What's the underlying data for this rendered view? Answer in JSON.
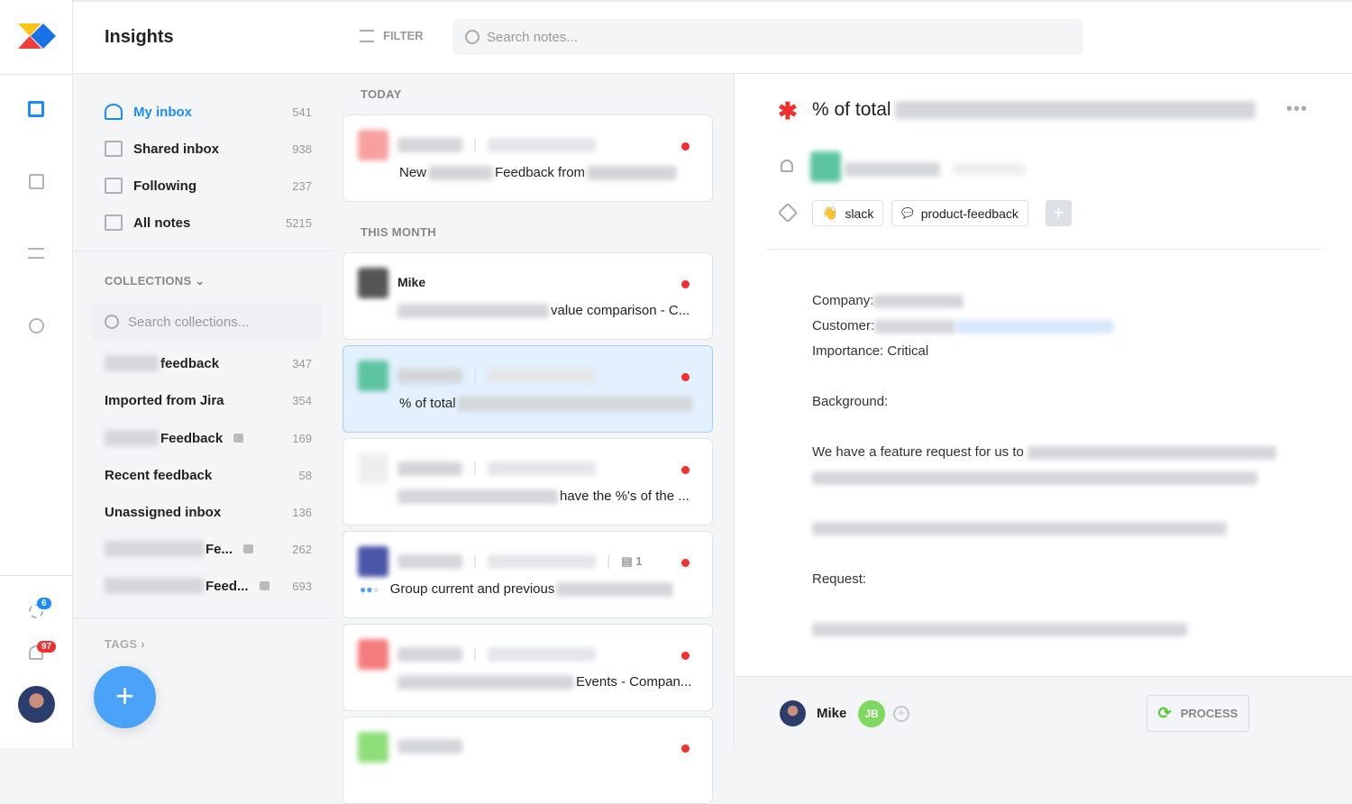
{
  "header": {
    "title": "Insights",
    "filter_label": "FILTER",
    "search_placeholder": "Search notes..."
  },
  "rail": {
    "icons": [
      "inbox-icon",
      "notes-icon",
      "roadmap-icon",
      "insights-icon"
    ],
    "updates_badge": "6",
    "notifications_badge": "97"
  },
  "sidebar": {
    "items": [
      {
        "label": "My inbox",
        "count": "541"
      },
      {
        "label": "Shared inbox",
        "count": "938"
      },
      {
        "label": "Following",
        "count": "237"
      },
      {
        "label": "All notes",
        "count": "5215"
      }
    ],
    "collections_label": "COLLECTIONS",
    "collections_search_placeholder": "Search collections...",
    "collections": [
      {
        "label": "feedback",
        "count": "347",
        "blurred": true,
        "locked": false
      },
      {
        "label": "Imported from Jira",
        "count": "354",
        "blurred": false,
        "locked": false
      },
      {
        "label": "Feedback",
        "count": "169",
        "blurred": true,
        "locked": true
      },
      {
        "label": "Recent feedback",
        "count": "58",
        "blurred": false,
        "locked": false
      },
      {
        "label": "Unassigned inbox",
        "count": "136",
        "blurred": false,
        "locked": false
      },
      {
        "label": "Fe...",
        "count": "262",
        "blurred": true,
        "locked": true
      },
      {
        "label": "Feed...",
        "count": "693",
        "blurred": true,
        "locked": true
      }
    ],
    "tags_label": "TAGS"
  },
  "notes": {
    "today_label": "TODAY",
    "this_month_label": "THIS MONTH",
    "cards": [
      {
        "author": "",
        "text_prefix": "New",
        "text_mid": "Feedback from",
        "selected": false
      },
      {
        "author": "Mike",
        "text": "value comparison - C...",
        "selected": false
      },
      {
        "author": "",
        "text": "% of total",
        "selected": true
      },
      {
        "author": "",
        "text": "have the %'s of the ...",
        "selected": false
      },
      {
        "author": "",
        "text": "Group current and previous",
        "comment_count": "1",
        "selected": false
      },
      {
        "author": "",
        "text": "Events - Compan...",
        "selected": false
      }
    ]
  },
  "detail": {
    "title": "% of total",
    "tags": [
      {
        "label": "slack",
        "icon": "👋"
      },
      {
        "label": "product-feedback",
        "icon": "💬"
      }
    ],
    "company_label": "Company:",
    "customer_label": "Customer:",
    "importance": "Importance: Critical",
    "background_label": "Background:",
    "feature_text": "We have a feature request for us to",
    "request_label": "Request:"
  },
  "footer": {
    "owner": "Mike",
    "assignee_initials": "JB",
    "process_label": "PROCESS"
  },
  "colors": {
    "accent": "#1a8cff",
    "danger": "#f03030",
    "success": "#5cc93a"
  }
}
